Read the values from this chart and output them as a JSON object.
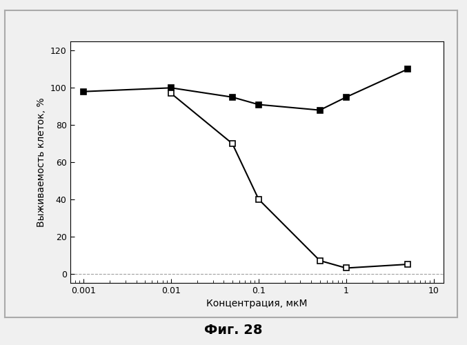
{
  "series1_x": [
    0.001,
    0.01,
    0.05,
    0.1,
    0.5,
    1.0,
    5.0
  ],
  "series1_y": [
    98,
    100,
    95,
    91,
    88,
    95,
    110
  ],
  "series2_x": [
    0.01,
    0.05,
    0.1,
    0.5,
    1.0,
    5.0
  ],
  "series2_y": [
    97,
    70,
    40,
    7,
    3,
    5
  ],
  "xlabel": "Концентрация, мкМ",
  "ylabel": "Выживаемость клеток, %",
  "caption": "Фиг. 28",
  "ylim": [
    -5,
    125
  ],
  "yticks": [
    0,
    20,
    40,
    60,
    80,
    100,
    120
  ],
  "xlim_left": 0.0007,
  "xlim_right": 13,
  "background_color": "#f0f0f0",
  "plot_bg_color": "#ffffff",
  "line_color": "#000000",
  "series1_marker": "s",
  "series1_markerfacecolor": "#000000",
  "series2_marker": "s",
  "series2_markerfacecolor": "#ffffff",
  "border_color": "#aaaaaa",
  "hline_color": "#888888"
}
